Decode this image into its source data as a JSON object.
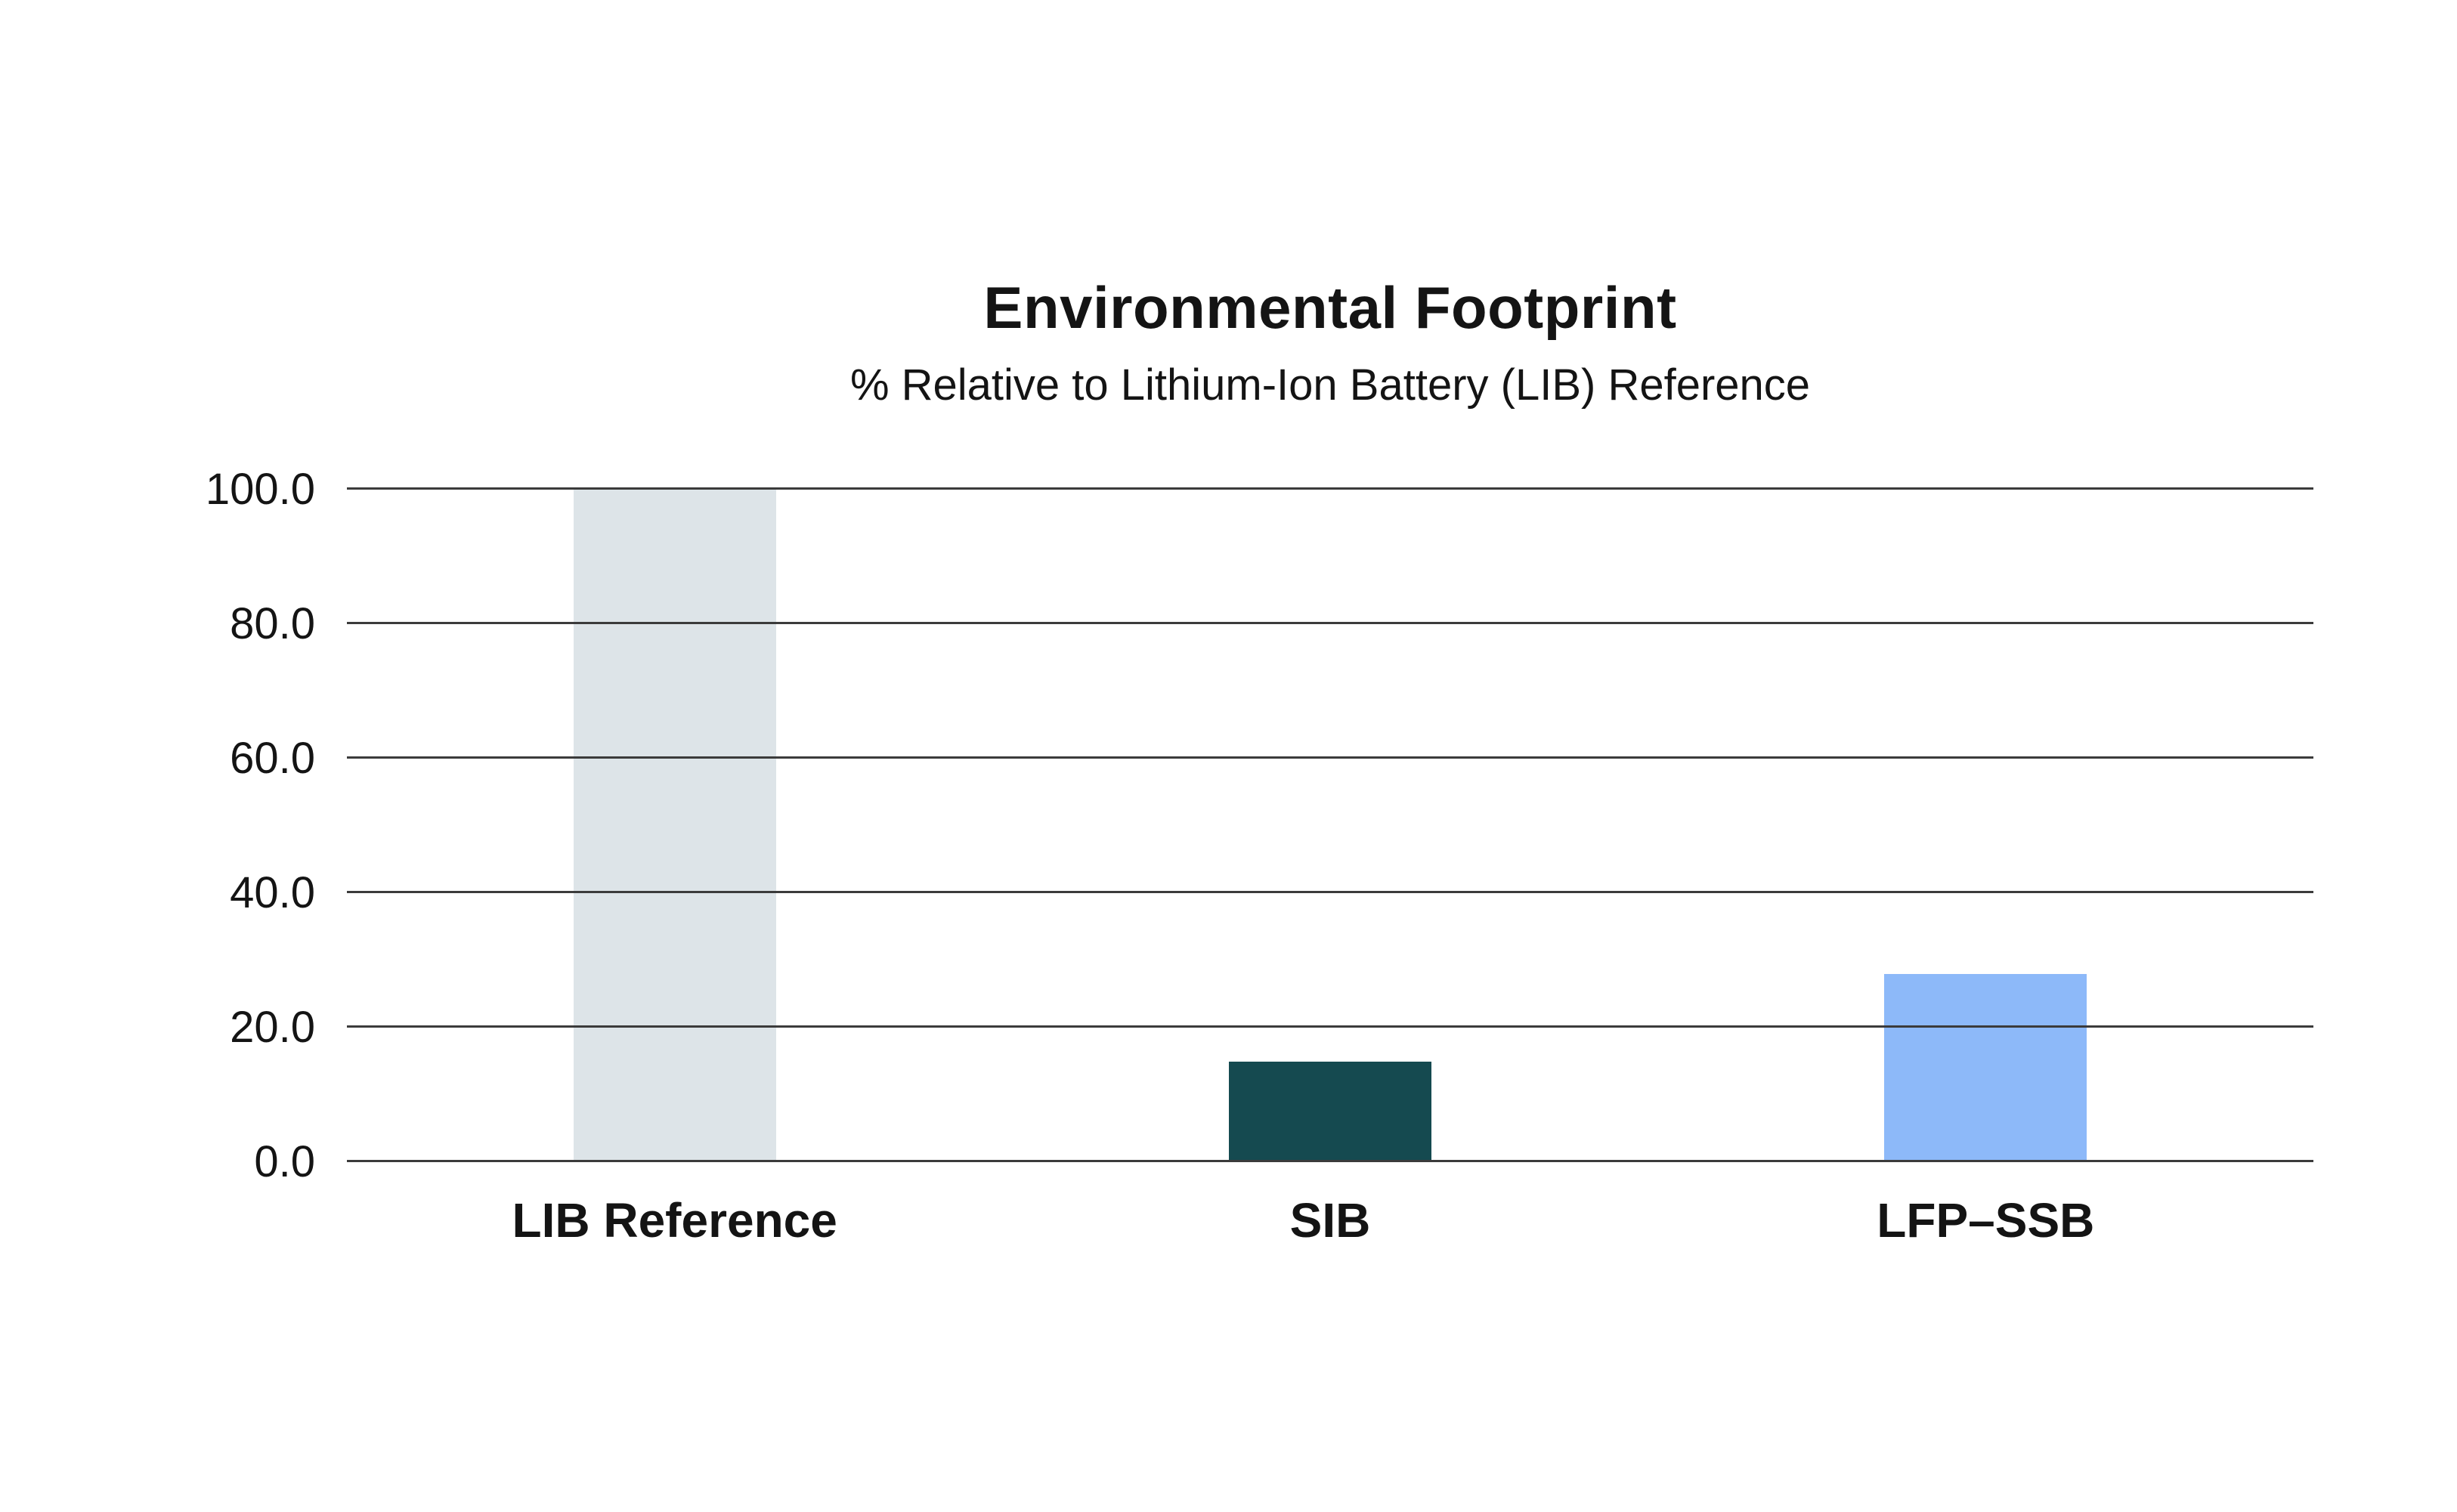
{
  "chart_data": {
    "type": "bar",
    "title": "Environmental Footprint",
    "subtitle": "% Relative to Lithium-Ion Battery (LIB) Reference",
    "categories": [
      "LIB Reference",
      "SIB",
      "LFP–SSB"
    ],
    "values": [
      100.0,
      15.0,
      28.0
    ],
    "bar_colors": [
      "#dde4e8",
      "#154a50",
      "#8db9f9"
    ],
    "xlabel": "",
    "ylabel": "",
    "ylim": [
      0,
      100
    ],
    "yticks": [
      0,
      20,
      40,
      60,
      80,
      100
    ],
    "ytick_labels": [
      "0.0",
      "20.0",
      "40.0",
      "60.0",
      "80.0",
      "100.0"
    ],
    "grid": true,
    "gridline_color": "#3b3b3b",
    "legend": "none",
    "background_color": "#ffffff"
  }
}
